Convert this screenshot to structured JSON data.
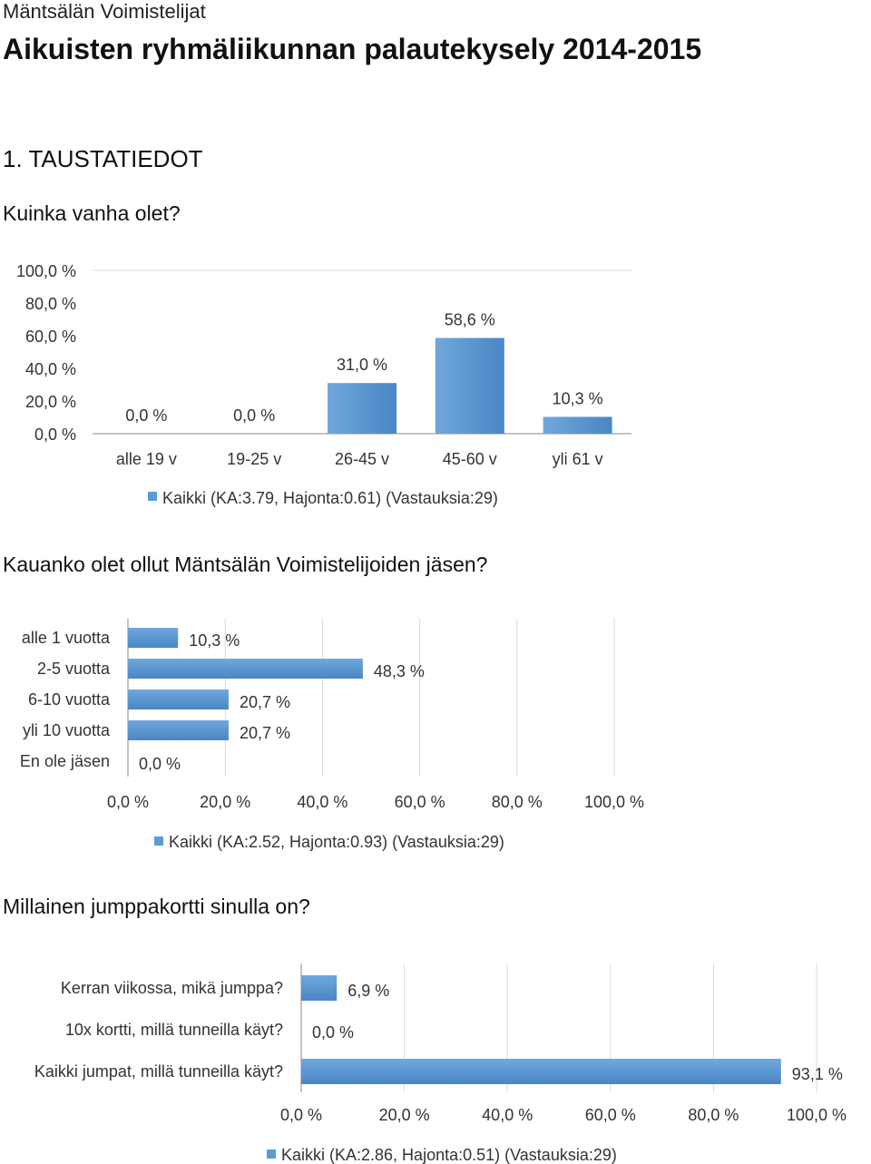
{
  "header": {
    "org": "Mäntsälän Voimistelijat",
    "title": "Aikuisten ryhmäliikunnan palautekysely 2014-2015",
    "section": "1.  TAUSTATIEDOT"
  },
  "questions": [
    "Kuinka vanha olet?",
    "Kauanko olet ollut Mäntsälän Voimistelijoiden jäsen?",
    "Millainen jumppakortti sinulla on?"
  ],
  "colors": {
    "bar": "#5b9bd5",
    "grid": "#d9d9d9",
    "axis": "#888888"
  },
  "chart_data": [
    {
      "type": "bar",
      "orientation": "vertical",
      "categories": [
        "alle 19 v",
        "19-25 v",
        "26-45 v",
        "45-60 v",
        "yli 61 v"
      ],
      "values": [
        0.0,
        0.0,
        31.0,
        58.6,
        10.3
      ],
      "value_labels": [
        "0,0 %",
        "0,0 %",
        "31,0 %",
        "58,6 %",
        "10,3 %"
      ],
      "ylim": [
        0,
        100
      ],
      "ticks": [
        "0,0 %",
        "20,0 %",
        "40,0 %",
        "60,0 %",
        "80,0 %",
        "100,0 %"
      ],
      "legend": "Kaikki (KA:3.79, Hajonta:0.61) (Vastauksia:29)",
      "legend_position": "bottom",
      "grid": false
    },
    {
      "type": "bar",
      "orientation": "horizontal",
      "categories": [
        "alle 1 vuotta",
        "2-5 vuotta",
        "6-10 vuotta",
        "yli 10 vuotta",
        "En ole jäsen"
      ],
      "values": [
        10.3,
        48.3,
        20.7,
        20.7,
        0.0
      ],
      "value_labels": [
        "10,3 %",
        "48,3 %",
        "20,7 %",
        "20,7 %",
        "0,0 %"
      ],
      "xlim": [
        0,
        100
      ],
      "ticks": [
        "0,0 %",
        "20,0 %",
        "40,0 %",
        "60,0 %",
        "80,0 %",
        "100,0 %"
      ],
      "legend": "Kaikki (KA:2.52, Hajonta:0.93) (Vastauksia:29)",
      "legend_position": "bottom",
      "grid": true
    },
    {
      "type": "bar",
      "orientation": "horizontal",
      "categories": [
        "Kerran viikossa, mikä jumppa?",
        "10x kortti, millä tunneilla käyt?",
        "Kaikki jumpat, millä tunneilla käyt?"
      ],
      "values": [
        6.9,
        0.0,
        93.1
      ],
      "value_labels": [
        "6,9 %",
        "0,0 %",
        "93,1 %"
      ],
      "xlim": [
        0,
        100
      ],
      "ticks": [
        "0,0 %",
        "20,0 %",
        "40,0 %",
        "60,0 %",
        "80,0 %",
        "100,0 %"
      ],
      "legend": "Kaikki (KA:2.86, Hajonta:0.51) (Vastauksia:29)",
      "legend_position": "bottom",
      "grid": true
    }
  ]
}
